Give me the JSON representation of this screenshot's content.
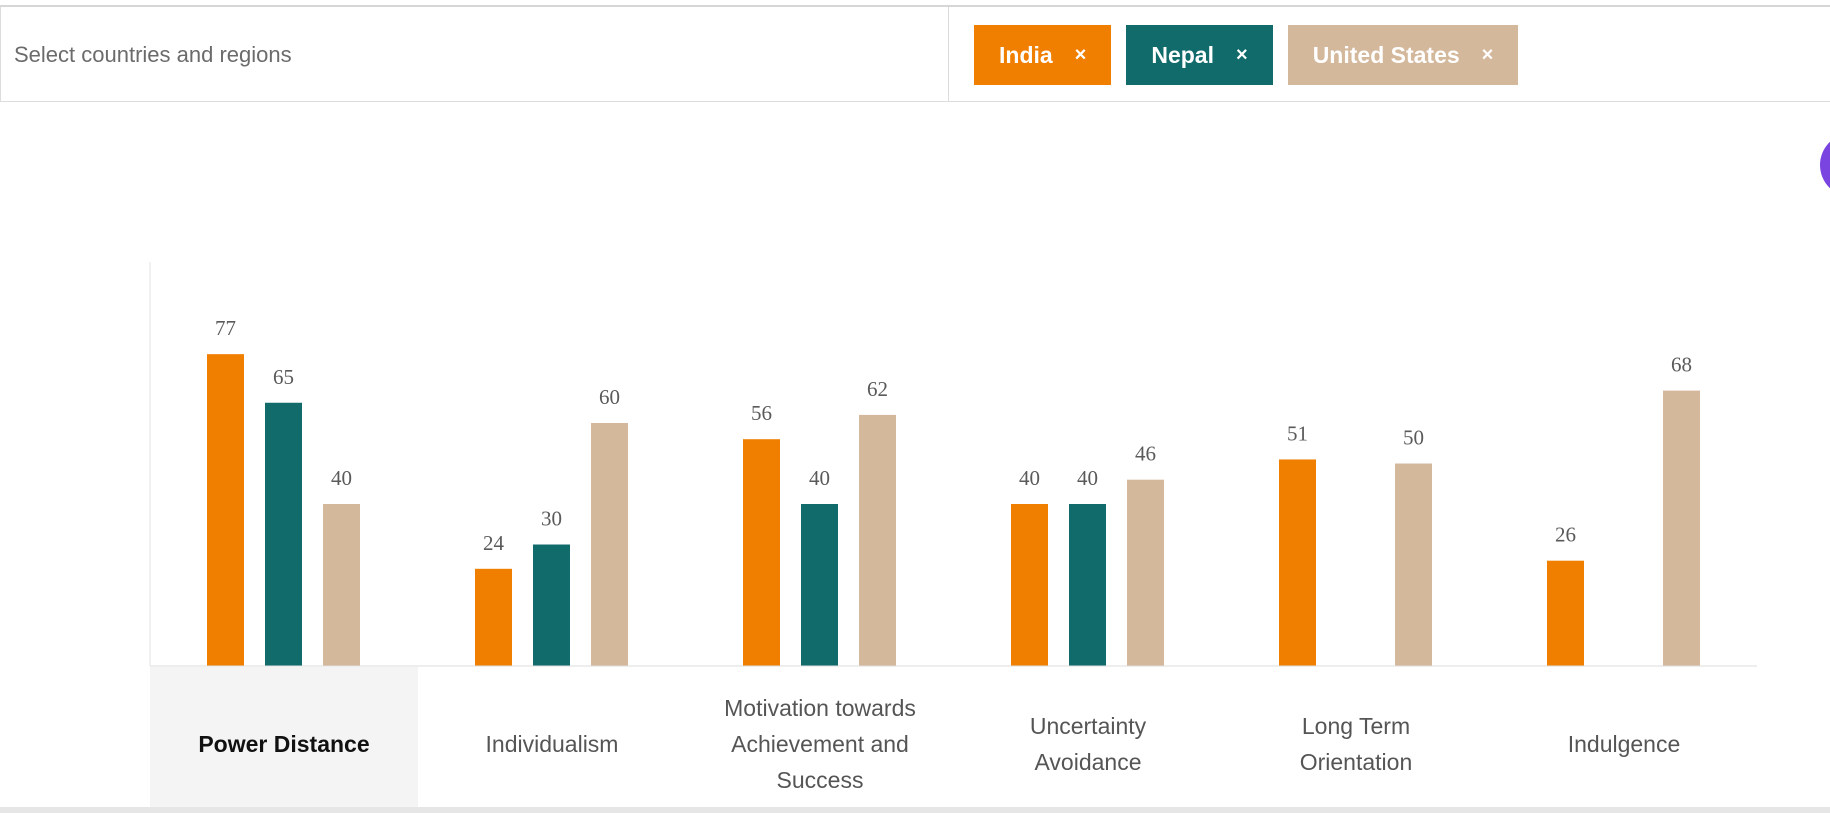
{
  "selector": {
    "placeholder": "Select countries and regions",
    "chips": [
      {
        "label": "India",
        "remove_glyph": "×",
        "color": "#f07f00"
      },
      {
        "label": "Nepal",
        "remove_glyph": "×",
        "color": "#116b6b"
      },
      {
        "label": "United States",
        "remove_glyph": "×",
        "color": "#d4b89c"
      }
    ]
  },
  "chart_data": {
    "type": "bar",
    "categories": [
      "Power Distance",
      "Individualism",
      "Motivation towards Achievement and Success",
      "Uncertainty Avoidance",
      "Long Term Orientation",
      "Indulgence"
    ],
    "active_category": "Power Distance",
    "series": [
      {
        "name": "India",
        "color": "#f07f00",
        "values": [
          77,
          24,
          56,
          40,
          51,
          26
        ]
      },
      {
        "name": "Nepal",
        "color": "#116b6b",
        "values": [
          65,
          30,
          40,
          40,
          null,
          null
        ]
      },
      {
        "name": "United States",
        "color": "#d4b89c",
        "values": [
          40,
          60,
          62,
          46,
          50,
          68
        ]
      }
    ],
    "ylim": [
      0,
      100
    ],
    "title": "",
    "xlabel": "",
    "ylabel": ""
  }
}
